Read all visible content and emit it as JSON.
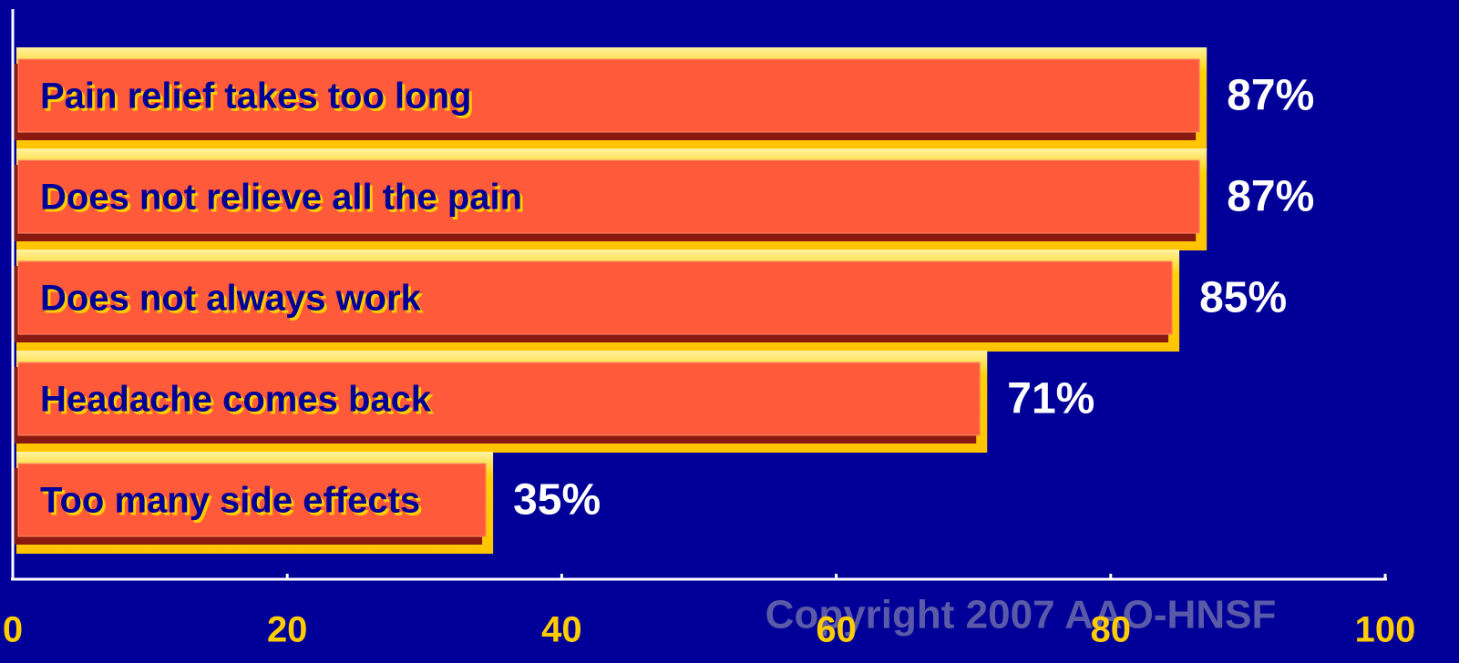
{
  "chart_data": {
    "type": "bar",
    "orientation": "horizontal",
    "categories": [
      "Pain relief takes too long",
      "Does not relieve all the pain",
      "Does not always work",
      "Headache comes back",
      "Too many side effects"
    ],
    "values": [
      87,
      87,
      85,
      71,
      35
    ],
    "value_labels": [
      "87%",
      "87%",
      "85%",
      "71%",
      "35%"
    ],
    "color": "#ff5a3a",
    "highlight_color": "#ffcc00",
    "xlim": [
      0,
      100
    ],
    "xticks": [
      0,
      20,
      40,
      60,
      80,
      100
    ],
    "annotation": "Copyright 2007 AAO-HNSF"
  }
}
